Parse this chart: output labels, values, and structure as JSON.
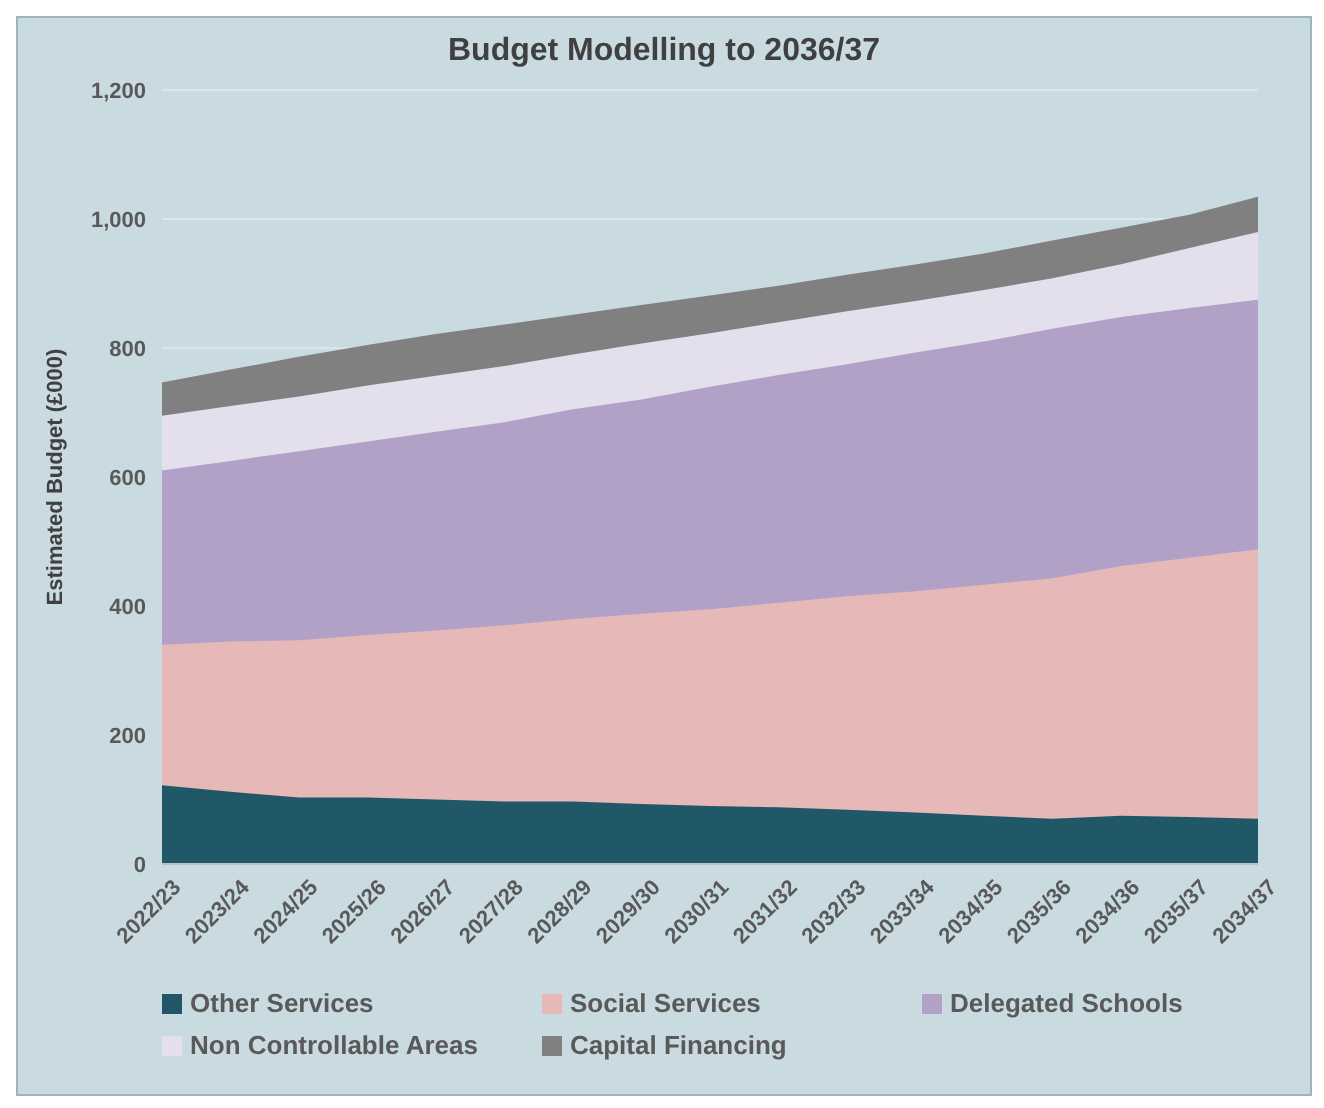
{
  "chart_data": {
    "type": "area",
    "stacked": true,
    "title": "Budget Modelling to 2036/37",
    "ylabel": "Estimated Budget (£000)",
    "categories": [
      "2022/23",
      "2023/24",
      "2024/25",
      "2025/26",
      "2026/27",
      "2027/28",
      "2028/29",
      "2029/30",
      "2030/31",
      "2031/32",
      "2032/33",
      "2033/34",
      "2034/35",
      "2035/36",
      "2034/36",
      "2035/37",
      "2034/37"
    ],
    "series": [
      {
        "name": "Other Services",
        "color": "#215868",
        "values": [
          122,
          112,
          103,
          103,
          100,
          97,
          97,
          93,
          90,
          88,
          84,
          80,
          75,
          70,
          75,
          73,
          70
        ]
      },
      {
        "name": "Social Services",
        "color": "#e6b8b7",
        "values": [
          218,
          233,
          244,
          252,
          262,
          273,
          283,
          295,
          305,
          317,
          331,
          343,
          358,
          373,
          387,
          402,
          418
        ]
      },
      {
        "name": "Delegated Schools",
        "color": "#b2a1c7",
        "values": [
          270,
          280,
          293,
          300,
          308,
          315,
          325,
          332,
          345,
          353,
          360,
          370,
          377,
          387,
          386,
          387,
          387
        ]
      },
      {
        "name": "Non Controllable Areas",
        "color": "#e4dfec",
        "values": [
          85,
          85,
          85,
          87,
          87,
          87,
          85,
          87,
          83,
          82,
          82,
          80,
          80,
          78,
          82,
          93,
          105
        ]
      },
      {
        "name": "Capital Financing",
        "color": "#808080",
        "values": [
          50,
          55,
          60,
          61,
          63,
          63,
          60,
          58,
          57,
          55,
          55,
          55,
          55,
          57,
          55,
          50,
          53
        ]
      }
    ],
    "ylim": [
      0,
      1200
    ],
    "yticks": [
      0,
      200,
      400,
      600,
      800,
      {
        "value": 1000,
        "label": "1,000"
      },
      {
        "value": 1200,
        "label": "1,200"
      }
    ],
    "grid": "y",
    "legend": "bottom"
  }
}
